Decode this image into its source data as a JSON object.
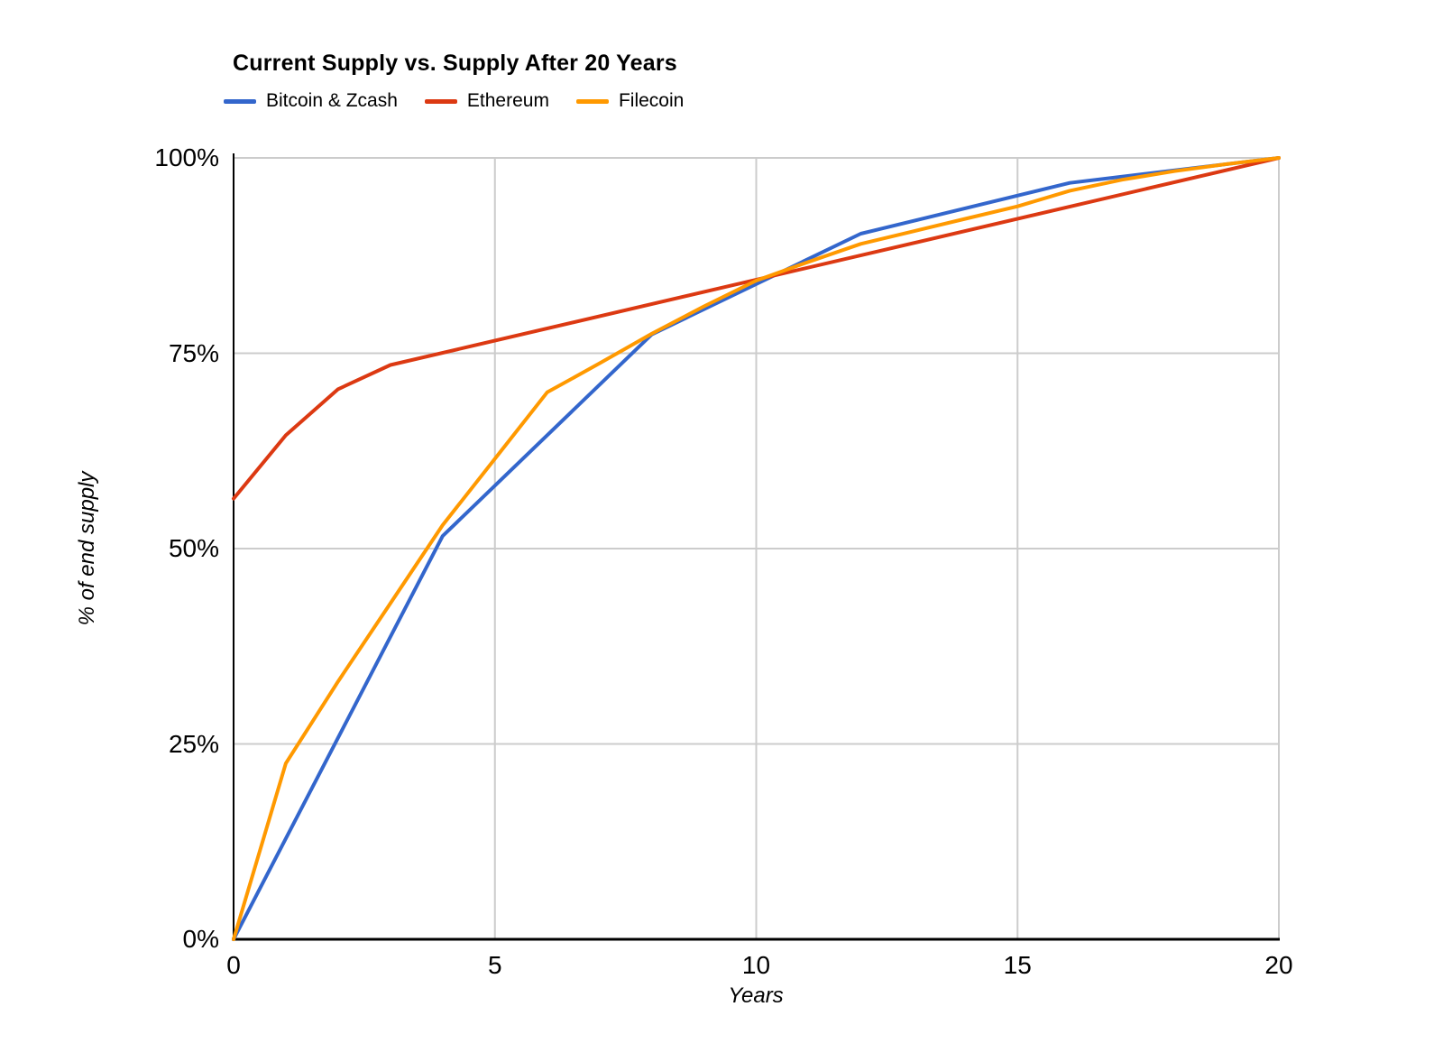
{
  "title": "Current Supply vs. Supply After 20 Years",
  "chart_data": {
    "type": "line",
    "title": "Current Supply vs. Supply After 20 Years",
    "xlabel": "Years",
    "ylabel": "% of end supply",
    "xlim": [
      0,
      20
    ],
    "ylim": [
      0,
      100
    ],
    "grid": true,
    "legend_position": "top",
    "x_ticks": [
      {
        "value": 0,
        "label": "0"
      },
      {
        "value": 5,
        "label": "5"
      },
      {
        "value": 10,
        "label": "10"
      },
      {
        "value": 15,
        "label": "15"
      },
      {
        "value": 20,
        "label": "20"
      }
    ],
    "y_ticks": [
      {
        "value": 0,
        "label": "0%"
      },
      {
        "value": 25,
        "label": "25%"
      },
      {
        "value": 50,
        "label": "50%"
      },
      {
        "value": 75,
        "label": "75%"
      },
      {
        "value": 100,
        "label": "100%"
      }
    ],
    "series": [
      {
        "name": "Bitcoin & Zcash",
        "color": "#3366cc",
        "points": [
          [
            0,
            0
          ],
          [
            4,
            51.6
          ],
          [
            8,
            77.4
          ],
          [
            12,
            90.3
          ],
          [
            16,
            96.8
          ],
          [
            20,
            100
          ]
        ]
      },
      {
        "name": "Ethereum",
        "color": "#dc3912",
        "points": [
          [
            0,
            56.4
          ],
          [
            1,
            64.5
          ],
          [
            2,
            70.4
          ],
          [
            3,
            73.5
          ],
          [
            20,
            100
          ]
        ]
      },
      {
        "name": "Filecoin",
        "color": "#ff9900",
        "points": [
          [
            0,
            0
          ],
          [
            1,
            22.5
          ],
          [
            2,
            33
          ],
          [
            3,
            43
          ],
          [
            4,
            53
          ],
          [
            5,
            61.5
          ],
          [
            6,
            70
          ],
          [
            7,
            73.7
          ],
          [
            8,
            77.5
          ],
          [
            9,
            81
          ],
          [
            10,
            84.3
          ],
          [
            11,
            86.7
          ],
          [
            12,
            89
          ],
          [
            13,
            90.6
          ],
          [
            14,
            92.2
          ],
          [
            15,
            93.8
          ],
          [
            16,
            95.8
          ],
          [
            17,
            97.2
          ],
          [
            18,
            98.3
          ],
          [
            19,
            99.2
          ],
          [
            20,
            100
          ]
        ]
      }
    ],
    "axis_color": "#000000",
    "gridline_color": "#cccccc"
  }
}
